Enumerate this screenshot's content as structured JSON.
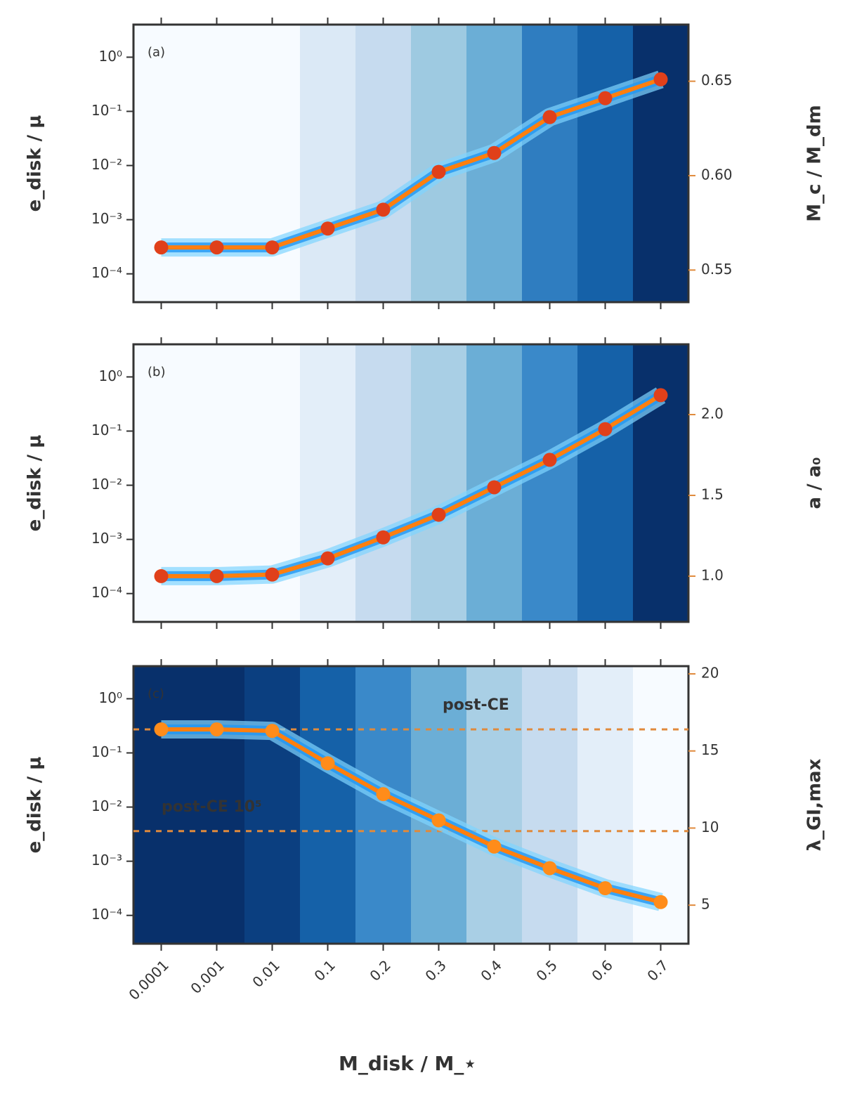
{
  "chart_data": [
    {
      "type": "line",
      "panel_label": "(a)",
      "ylabel": "e_disk / μ",
      "ylog": true,
      "ylim": [
        3e-05,
        4
      ],
      "yticks": [
        {
          "value": 1,
          "label": "10⁰"
        },
        {
          "value": 0.1,
          "label": "10⁻¹"
        },
        {
          "value": 0.01,
          "label": "10⁻²"
        },
        {
          "value": 0.001,
          "label": "10⁻³"
        },
        {
          "value": 0.0001,
          "label": "10⁻⁴"
        }
      ],
      "y2label": "M_c / M_dm",
      "y2lim": [
        0.533,
        0.68
      ],
      "y2ticks": [
        0.55,
        {
          "value": 0.6,
          "label": "0.60"
        },
        0.65
      ],
      "values": [
        0.562,
        0.562,
        0.562,
        0.572,
        0.582,
        0.602,
        0.612,
        0.631,
        0.641,
        0.651
      ],
      "axis": "y2",
      "color": "#ff7f0e",
      "marker_color": "#e0401a",
      "band_colors": [
        "#f7fbff",
        "#f7fbff",
        "#f7fbff",
        "#dbe9f6",
        "#c6dbef",
        "#9ecae1",
        "#6baed6",
        "#2f7dc0",
        "#1561a8",
        "#08306b"
      ]
    },
    {
      "type": "line",
      "panel_label": "(b)",
      "ylabel": "e_disk / μ",
      "ylog": true,
      "ylim": [
        3e-05,
        4
      ],
      "yticks": [
        {
          "value": 1,
          "label": "10⁰"
        },
        {
          "value": 0.1,
          "label": "10⁻¹"
        },
        {
          "value": 0.01,
          "label": "10⁻²"
        },
        {
          "value": 0.001,
          "label": "10⁻³"
        },
        {
          "value": 0.0001,
          "label": "10⁻⁴"
        }
      ],
      "y2label": "a / a₀",
      "y2lim": [
        0.717,
        2.435
      ],
      "y2ticks": [
        {
          "value": 1,
          "label": "1.0"
        },
        1.5,
        {
          "value": 2,
          "label": "2.0"
        }
      ],
      "values": [
        1.0,
        1.0,
        1.01,
        1.11,
        1.24,
        1.38,
        1.55,
        1.72,
        1.91,
        2.12
      ],
      "axis": "y2",
      "color": "#ff7f0e",
      "marker_color": "#e0401a",
      "band_colors": [
        "#f7fbff",
        "#f7fbff",
        "#f7fbff",
        "#e3eef9",
        "#c6dbef",
        "#a9cfe5",
        "#6baed6",
        "#3a89c9",
        "#1561a8",
        "#08306b"
      ]
    },
    {
      "type": "line",
      "panel_label": "(c)",
      "ylabel": "e_disk / μ",
      "ylog": true,
      "ylim": [
        3e-05,
        4
      ],
      "yticks": [
        {
          "value": 1,
          "label": "10⁰"
        },
        {
          "value": 0.1,
          "label": "10⁻¹"
        },
        {
          "value": 0.01,
          "label": "10⁻²"
        },
        {
          "value": 0.001,
          "label": "10⁻³"
        },
        {
          "value": 0.0001,
          "label": "10⁻⁴"
        }
      ],
      "y2label": "λ_GI,max",
      "y2lim": [
        2.5,
        20.5
      ],
      "y2ticks": [
        5,
        10,
        15,
        20
      ],
      "values": [
        16.4,
        16.4,
        16.3,
        14.2,
        12.2,
        10.5,
        8.8,
        7.4,
        6.1,
        5.2
      ],
      "axis": "y2",
      "color": "#ff7f0e",
      "marker_color": "#ff8c1a",
      "hlines": [
        {
          "value": 16.4,
          "label": "post-CE"
        },
        {
          "value": 9.8,
          "label": "post-CE 10⁵"
        }
      ],
      "band_colors": [
        "#08306b",
        "#08306b",
        "#0b3f80",
        "#1561a8",
        "#3a89c9",
        "#6baed6",
        "#a9cfe5",
        "#c6dbef",
        "#e3eef9",
        "#f7fbff"
      ],
      "categories": [
        "0.0001",
        "0.001",
        "0.01",
        "0.1",
        "0.2",
        "0.3",
        "0.4",
        "0.5",
        "0.6",
        "0.7"
      ],
      "xlabel": "M_disk / M_⋆"
    }
  ]
}
